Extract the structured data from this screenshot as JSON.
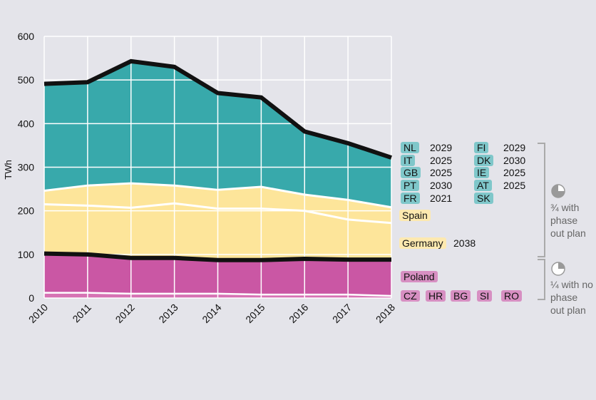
{
  "chart_data": {
    "type": "area",
    "ylabel": "TWh",
    "ylim": [
      0,
      600
    ],
    "yticks": [
      0,
      100,
      200,
      300,
      400,
      500,
      600
    ],
    "x": [
      "2010",
      "2011",
      "2012",
      "2013",
      "2014",
      "2015",
      "2016",
      "2017",
      "2018"
    ],
    "boundaries": {
      "other_small": [
        12,
        12,
        10,
        10,
        10,
        8,
        8,
        8,
        5
      ],
      "poland": [
        102,
        100,
        92,
        92,
        87,
        87,
        90,
        88,
        88
      ],
      "germany": [
        215,
        212,
        207,
        217,
        205,
        205,
        200,
        180,
        172
      ],
      "spain": [
        246,
        258,
        263,
        258,
        248,
        255,
        237,
        225,
        208
      ],
      "total": [
        491,
        495,
        543,
        530,
        470,
        460,
        382,
        355,
        322
      ]
    },
    "colors": {
      "blue": "#38a9ab",
      "yellow": "#fde59a",
      "pink": "#ca57a4",
      "pink_light": "#d673b4",
      "grid": "#ffffff",
      "bracket": "#aaaaaa"
    }
  },
  "legend": {
    "blue_rows": [
      {
        "left": {
          "code": "NL",
          "year": "2029"
        },
        "right": {
          "code": "FI",
          "year": "2029"
        }
      },
      {
        "left": {
          "code": "IT",
          "year": "2025"
        },
        "right": {
          "code": "DK",
          "year": "2030"
        }
      },
      {
        "left": {
          "code": "GB",
          "year": "2025"
        },
        "right": {
          "code": "IE",
          "year": "2025"
        }
      },
      {
        "left": {
          "code": "PT",
          "year": "2030"
        },
        "right": {
          "code": "AT",
          "year": "2025"
        }
      },
      {
        "left": {
          "code": "FR",
          "year": "2021"
        },
        "right": {
          "code": "SK",
          "year": ""
        }
      }
    ],
    "spain": "Spain",
    "germany": {
      "name": "Germany",
      "year": "2038"
    },
    "poland": "Poland",
    "small": [
      "CZ",
      "HR",
      "BG",
      "SI",
      "RO"
    ]
  },
  "annotations": {
    "top": [
      "¾ with",
      "phase",
      "out plan"
    ],
    "bottom": [
      "¼ with no",
      "phase",
      "out plan"
    ]
  }
}
